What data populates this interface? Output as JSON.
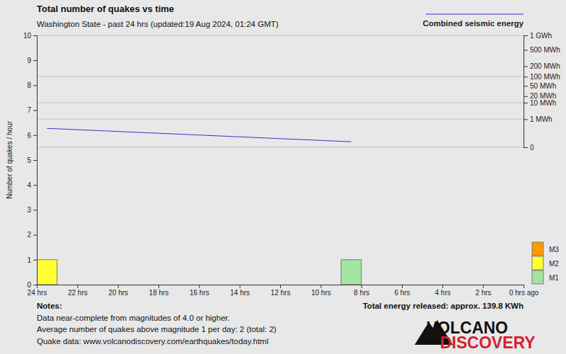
{
  "chart_data": {
    "type": "bar",
    "stacked": true,
    "title": "Total number of quakes vs time",
    "subtitle": "Washington State - past 24 hrs (updated:19 Aug 2024, 01:24 GMT)",
    "y_label": "Number of quakes / hour",
    "bins": [
      24,
      23,
      22,
      21,
      20,
      19,
      18,
      17,
      16,
      15,
      14,
      13,
      12,
      11,
      10,
      9,
      8,
      7,
      6,
      5,
      4,
      3,
      2,
      1,
      0
    ],
    "xlim": [
      24,
      0
    ],
    "xticks": [
      {
        "value": 24,
        "label": "24 hrs"
      },
      {
        "value": 22,
        "label": "22 hrs"
      },
      {
        "value": 20,
        "label": "20 hrs"
      },
      {
        "value": 18,
        "label": "18 hrs"
      },
      {
        "value": 16,
        "label": "16 hrs"
      },
      {
        "value": 14,
        "label": "14 hrs"
      },
      {
        "value": 12,
        "label": "12 hrs"
      },
      {
        "value": 10,
        "label": "10 hrs"
      },
      {
        "value": 8,
        "label": "8 hrs"
      },
      {
        "value": 6,
        "label": "6 hrs"
      },
      {
        "value": 4,
        "label": "4 hrs"
      },
      {
        "value": 2,
        "label": "2 hrs"
      },
      {
        "value": 0,
        "label": "0 hrs ago"
      }
    ],
    "ylim": [
      0,
      10
    ],
    "yticks": [
      0,
      1,
      2,
      3,
      4,
      5,
      6,
      7,
      8,
      9,
      10
    ],
    "y2lim": [
      0,
      1000
    ],
    "y2ticks": [
      {
        "value": 1000,
        "label": "1 GWh"
      },
      {
        "value": 500,
        "label": "500 MWh"
      },
      {
        "value": 200,
        "label": "200 MWh"
      },
      {
        "value": 100,
        "label": "100 MWh"
      },
      {
        "value": 50,
        "label": "50 MWh"
      },
      {
        "value": 20,
        "label": "20 MWh"
      },
      {
        "value": 10,
        "label": "10 MWh"
      },
      {
        "value": 1,
        "label": "1 MWh"
      },
      0
    ],
    "grid": true,
    "legend": "right",
    "series": [
      {
        "name": "M1",
        "color": "#a3e4a3",
        "values": [
          0,
          0,
          0,
          0,
          0,
          0,
          0,
          0,
          0,
          0,
          0,
          0,
          0,
          0,
          0,
          1,
          0,
          0,
          0,
          0,
          0,
          0,
          0,
          0
        ]
      },
      {
        "name": "M2",
        "color": "#ffff33",
        "values": [
          1,
          0,
          0,
          0,
          0,
          0,
          0,
          0,
          0,
          0,
          0,
          0,
          0,
          0,
          0,
          0,
          0,
          0,
          0,
          0,
          0,
          0,
          0,
          0
        ]
      },
      {
        "name": "M3",
        "color": "#ff9900",
        "values": [
          0,
          0,
          0,
          0,
          0,
          0,
          0,
          0,
          0,
          0,
          0,
          0,
          0,
          0,
          0,
          0,
          0,
          0,
          0,
          0,
          0,
          0,
          0,
          0
        ]
      },
      {
        "name": "Combined seismic energy",
        "type": "line",
        "axis": "y2",
        "color": "#3333cc",
        "x": [
          23.5,
          8.5
        ],
        "values": [
          0.1395,
          0.0003
        ]
      }
    ],
    "notes": [
      "Notes:",
      "Data near-complete from magnitudes of 4.0 or higher.",
      "Average number of quakes above magnitude 1 per day: 2 (total: 2)",
      "Quake data: www.volcanodiscovery.com/earthquakes/today.html"
    ],
    "footer": "Total energy released: approx. 139.8 KWh",
    "logo": [
      "VOLCANO",
      "DISCOVERY"
    ]
  }
}
